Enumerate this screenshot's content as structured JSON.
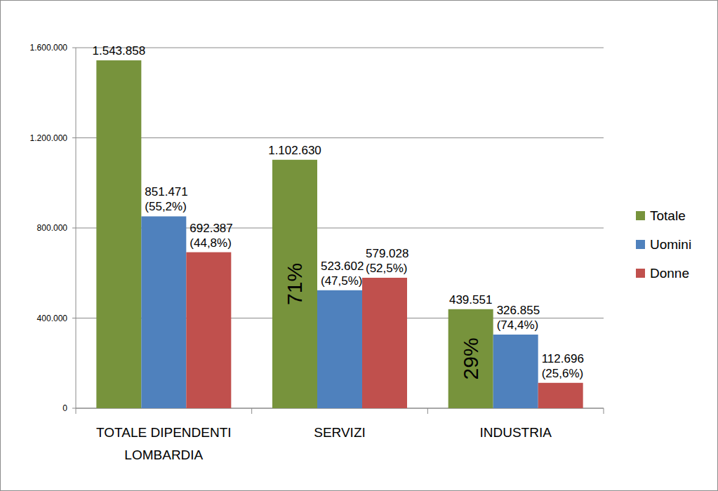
{
  "chart_data": {
    "type": "bar",
    "categories": [
      "TOTALE DIPENDENTI\nLOMBARDIA",
      "SERVIZI",
      "INDUSTRIA"
    ],
    "series": [
      {
        "name": "Totale",
        "color": "#77933c",
        "values": [
          1543858,
          1102630,
          439551
        ],
        "value_labels": [
          "1.543.858",
          "1.102.630",
          "439.551"
        ]
      },
      {
        "name": "Uomini",
        "color": "#4f81bd",
        "values": [
          851471,
          523602,
          326855
        ],
        "value_labels": [
          "851.471\n(55,2%)",
          "523.602\n(47,5%)",
          "326.855\n(74,4%)"
        ]
      },
      {
        "name": "Donne",
        "color": "#c0504d",
        "values": [
          692387,
          579028,
          112696
        ],
        "value_labels": [
          "692.387\n(44,8%)",
          "579.028\n(52,5%)",
          "112.696\n(25,6%)"
        ]
      }
    ],
    "ylim": [
      0,
      1600000
    ],
    "yticks": [
      {
        "value": 0,
        "label": "0"
      },
      {
        "value": 400000,
        "label": "400.000"
      },
      {
        "value": 800000,
        "label": "800.000"
      },
      {
        "value": 1200000,
        "label": "1.200.000"
      },
      {
        "value": 1600000,
        "label": "1.600.000"
      }
    ],
    "grid": true,
    "legend": "right",
    "data_labels": true,
    "annotations": [
      {
        "text": "71%",
        "category": "SERVIZI",
        "series": "Totale"
      },
      {
        "text": "29%",
        "category": "INDUSTRIA",
        "series": "Totale"
      }
    ]
  }
}
